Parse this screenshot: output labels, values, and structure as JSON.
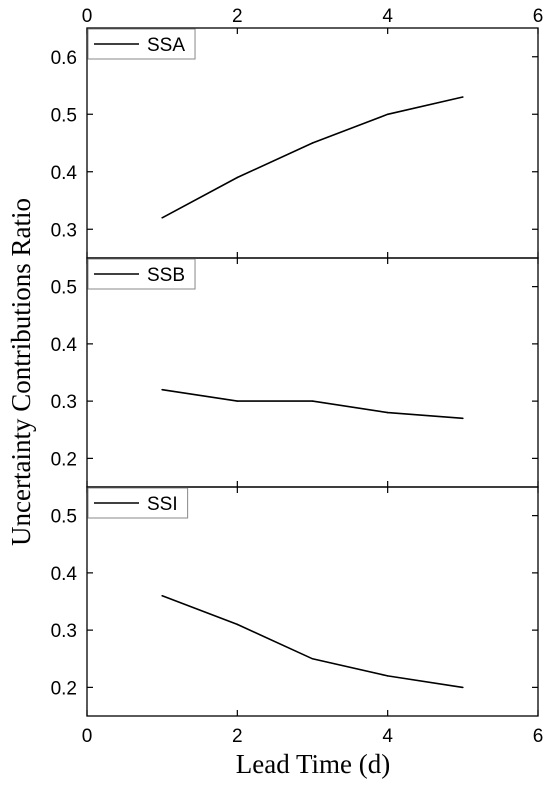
{
  "chart_data": {
    "type": "line",
    "xlabel": "Lead Time (d)",
    "ylabel": "Uncertainty Contributions Ratio",
    "xlim": [
      0,
      6
    ],
    "x_ticks": [
      0,
      2,
      4,
      6
    ],
    "x_tick_labels": [
      "0",
      "2",
      "4",
      "6"
    ],
    "legend_position": "top-left",
    "line_color": "#000000",
    "panels": [
      {
        "ylim": [
          0.25,
          0.65
        ],
        "y_ticks": [
          0.3,
          0.4,
          0.5,
          0.6
        ],
        "y_tick_labels": [
          "0.3",
          "0.4",
          "0.5",
          "0.6"
        ],
        "series": [
          {
            "name": "SSA",
            "x": [
              1,
              2,
              3,
              4,
              5
            ],
            "y": [
              0.32,
              0.39,
              0.45,
              0.5,
              0.53
            ]
          }
        ]
      },
      {
        "ylim": [
          0.15,
          0.55
        ],
        "y_ticks": [
          0.2,
          0.3,
          0.4,
          0.5
        ],
        "y_tick_labels": [
          "0.2",
          "0.3",
          "0.4",
          "0.5"
        ],
        "series": [
          {
            "name": "SSB",
            "x": [
              1,
              2,
              3,
              4,
              5
            ],
            "y": [
              0.32,
              0.3,
              0.3,
              0.28,
              0.27
            ]
          }
        ]
      },
      {
        "ylim": [
          0.15,
          0.55
        ],
        "y_ticks": [
          0.2,
          0.3,
          0.4,
          0.5
        ],
        "y_tick_labels": [
          "0.2",
          "0.3",
          "0.4",
          "0.5"
        ],
        "series": [
          {
            "name": "SSI",
            "x": [
              1,
              2,
              3,
              4,
              5
            ],
            "y": [
              0.36,
              0.31,
              0.25,
              0.22,
              0.2
            ]
          }
        ]
      }
    ]
  }
}
